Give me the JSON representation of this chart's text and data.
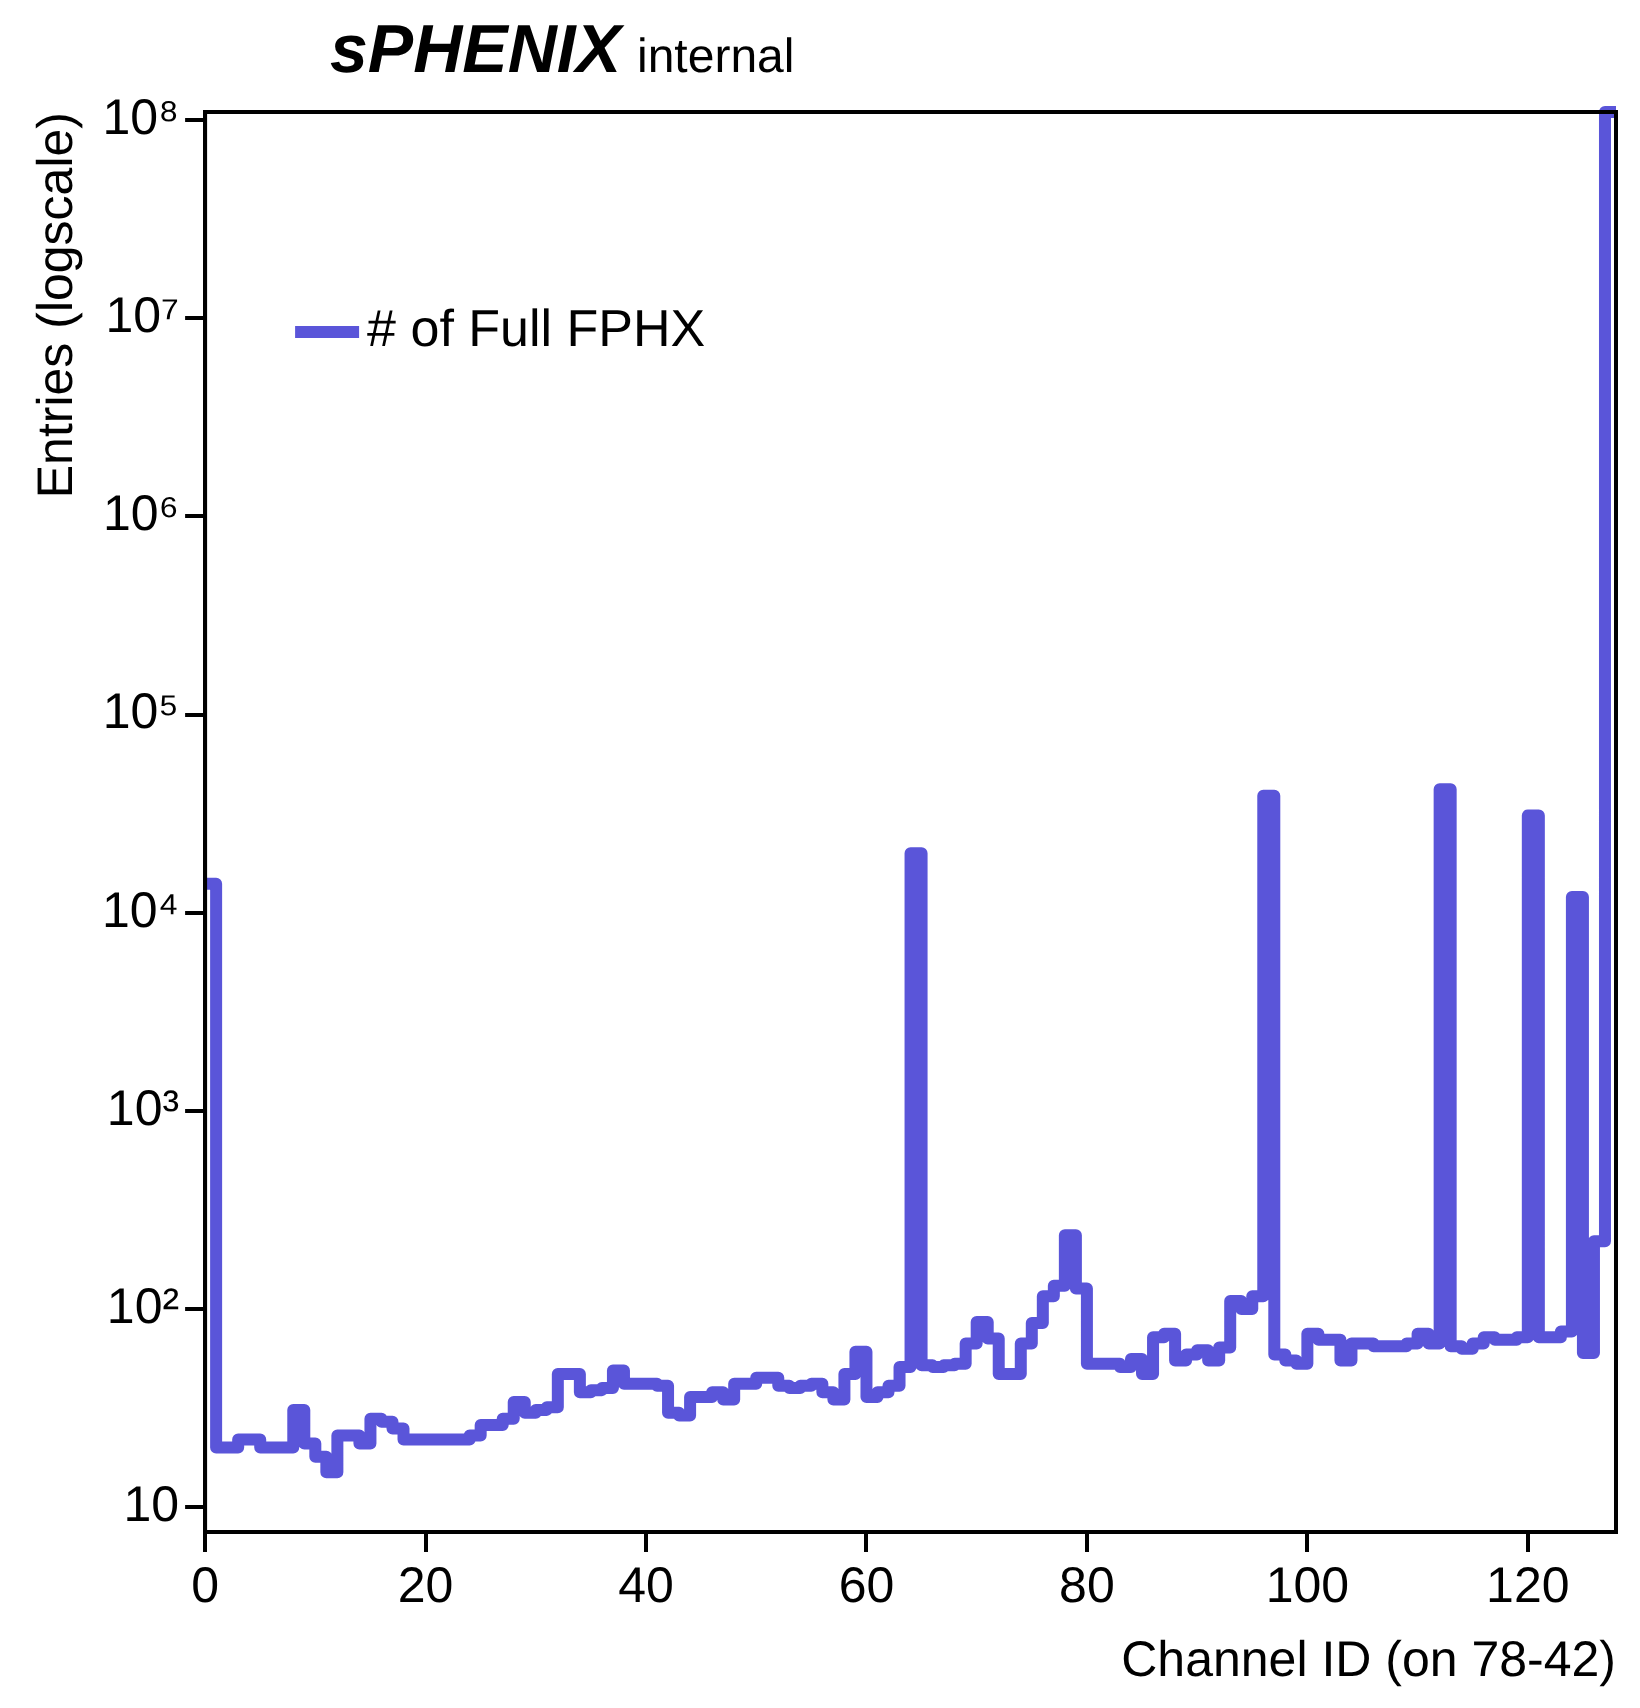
{
  "chart_data": {
    "type": "histogram",
    "title": "sPHENIX",
    "subtitle": "internal",
    "xlabel": "Channel ID (on 78-42)",
    "ylabel": "Entries (logscale)",
    "log": "y",
    "legend": "top left",
    "bins": [
      0,
      1,
      2,
      3,
      4,
      5,
      6,
      7,
      8,
      9,
      10,
      11,
      12,
      13,
      14,
      15,
      16,
      17,
      18,
      19,
      20,
      21,
      22,
      23,
      24,
      25,
      26,
      27,
      28,
      29,
      30,
      31,
      32,
      33,
      34,
      35,
      36,
      37,
      38,
      39,
      40,
      41,
      42,
      43,
      44,
      45,
      46,
      47,
      48,
      49,
      50,
      51,
      52,
      53,
      54,
      55,
      56,
      57,
      58,
      59,
      60,
      61,
      62,
      63,
      64,
      65,
      66,
      67,
      68,
      69,
      70,
      71,
      72,
      73,
      74,
      75,
      76,
      77,
      78,
      79,
      80,
      81,
      82,
      83,
      84,
      85,
      86,
      87,
      88,
      89,
      90,
      91,
      92,
      93,
      94,
      95,
      96,
      97,
      98,
      99,
      100,
      101,
      102,
      103,
      104,
      105,
      106,
      107,
      108,
      109,
      110,
      111,
      112,
      113,
      114,
      115,
      116,
      117,
      118,
      119,
      120,
      121,
      122,
      123,
      124,
      125,
      126,
      127,
      128
    ],
    "series": [
      {
        "name": "# of Full FPHX",
        "color": "#5a55d9",
        "values": [
          14000,
          20,
          20,
          22,
          22,
          20,
          20,
          20,
          31,
          21,
          18,
          15,
          23,
          23,
          21,
          28,
          27,
          25,
          22,
          22,
          22,
          22,
          22,
          22,
          23,
          26,
          26,
          28,
          34,
          30,
          31,
          32,
          47,
          47,
          38,
          39,
          40,
          49,
          42,
          42,
          42,
          41,
          30,
          29,
          36,
          36,
          38,
          35,
          42,
          42,
          45,
          45,
          41,
          40,
          41,
          42,
          38,
          35,
          47,
          61,
          36,
          38,
          41,
          51,
          20000,
          52,
          51,
          52,
          53,
          67,
          86,
          71,
          47,
          47,
          67,
          85,
          116,
          131,
          236,
          127,
          53,
          53,
          53,
          51,
          56,
          47,
          72,
          75,
          55,
          59,
          62,
          55,
          64,
          110,
          100,
          116,
          39000,
          59,
          55,
          53,
          75,
          70,
          70,
          55,
          67,
          67,
          65,
          65,
          65,
          67,
          75,
          67,
          42000,
          65,
          63,
          67,
          72,
          70,
          70,
          72,
          31000,
          72,
          72,
          77,
          12000,
          60,
          220,
          110000000
        ]
      }
    ],
    "xlim": [
      0,
      128
    ],
    "xticks": [
      0,
      20,
      40,
      60,
      80,
      100,
      120
    ],
    "ylim": [
      7.5,
      110000000
    ],
    "yticks": [
      10,
      {
        "value": 100,
        "label": "10²"
      },
      {
        "value": 1000,
        "label": "10³"
      },
      {
        "value": 10000,
        "label": "10⁴"
      },
      {
        "value": 100000,
        "label": "10⁵"
      },
      {
        "value": 1000000,
        "label": "10⁶"
      },
      {
        "value": 10000000,
        "label": "10⁷"
      },
      {
        "value": 100000000,
        "label": "10⁸"
      }
    ]
  }
}
